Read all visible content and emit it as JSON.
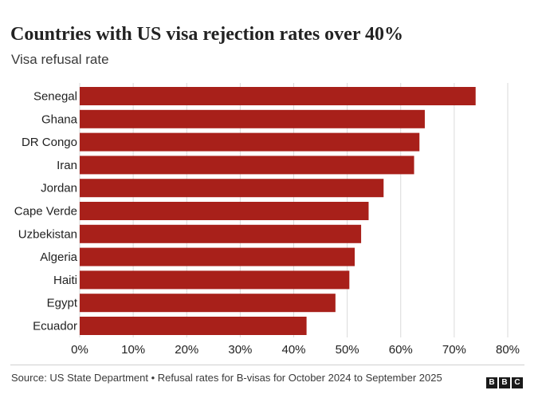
{
  "header": {
    "title": "Countries with US visa rejection rates over 40%",
    "subtitle": "Visa refusal rate"
  },
  "footer": {
    "source": "Source: US State Department • Refusal rates for B-visas for October 2024 to September 2025",
    "logo_text": "BBC"
  },
  "colors": {
    "bar": "#a8201a",
    "grid": "#dadada",
    "text": "#222222"
  },
  "chart_data": {
    "type": "bar",
    "orientation": "horizontal",
    "title": "Countries with US visa rejection rates over 40%",
    "subtitle": "Visa refusal rate",
    "categories": [
      "Senegal",
      "Ghana",
      "DR Congo",
      "Iran",
      "Jordan",
      "Cape Verde",
      "Uzbekistan",
      "Algeria",
      "Haiti",
      "Egypt",
      "Ecuador"
    ],
    "values": [
      74,
      64.5,
      63.5,
      62.5,
      56.8,
      54,
      52.6,
      51.4,
      50.4,
      47.8,
      42.4
    ],
    "unit": "%",
    "xlim": [
      0,
      80
    ],
    "xticks": [
      0,
      10,
      20,
      30,
      40,
      50,
      60,
      70,
      80
    ],
    "xtick_labels": [
      "0%",
      "10%",
      "20%",
      "30%",
      "40%",
      "50%",
      "60%",
      "70%",
      "80%"
    ],
    "grid": true,
    "legend": "none"
  }
}
